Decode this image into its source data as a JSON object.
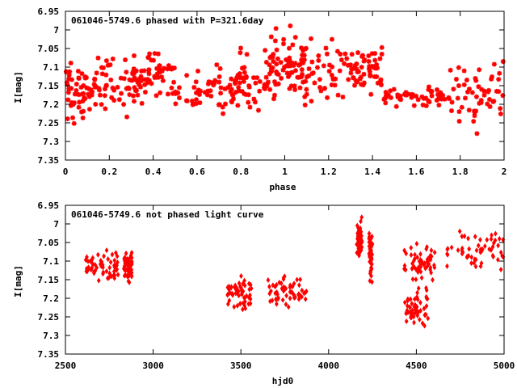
{
  "chart_data": [
    {
      "type": "scatter",
      "title": "061046-5749.6 phased with P=321.6day",
      "xlabel": "phase",
      "ylabel": "I[mag]",
      "xlim": [
        0,
        2
      ],
      "ylim": [
        6.95,
        7.35
      ],
      "y_inverted": true,
      "x_ticks": [
        "0",
        "0.2",
        "0.4",
        "0.6",
        "0.8",
        "1",
        "1.2",
        "1.4",
        "1.6",
        "1.8",
        "2"
      ],
      "y_ticks": [
        "6.95",
        "7",
        "7.05",
        "7.1",
        "7.15",
        "7.2",
        "7.25",
        "7.3",
        "7.35"
      ],
      "grid": false,
      "marker_color": "#ff0000",
      "series": [
        {
          "clusters": [
            {
              "x": [
                0.0,
                0.14
              ],
              "y": [
                7.04,
                7.28
              ]
            },
            {
              "x": [
                0.13,
                0.35
              ],
              "y": [
                7.02,
                7.28
              ]
            },
            {
              "x": [
                0.3,
                0.5
              ],
              "y": [
                7.05,
                7.2
              ]
            },
            {
              "x": [
                0.5,
                0.8
              ],
              "y": [
                7.08,
                7.25
              ]
            },
            {
              "x": [
                0.75,
                0.97
              ],
              "y": [
                7.02,
                7.28
              ]
            },
            {
              "x": [
                0.93,
                1.1
              ],
              "y": [
                6.97,
                7.2
              ]
            },
            {
              "x": [
                1.02,
                1.28
              ],
              "y": [
                7.0,
                7.25
              ]
            },
            {
              "x": [
                1.28,
                1.45
              ],
              "y": [
                7.02,
                7.2
              ]
            },
            {
              "x": [
                1.45,
                1.75
              ],
              "y": [
                7.14,
                7.22
              ]
            },
            {
              "x": [
                1.75,
                2.0
              ],
              "y": [
                7.05,
                7.3
              ]
            }
          ]
        }
      ]
    },
    {
      "type": "scatter",
      "title": "061046-5749.6 not phased light curve",
      "xlabel": "hjd0",
      "ylabel": "I[mag]",
      "xlim": [
        2500,
        5000
      ],
      "ylim": [
        6.95,
        7.35
      ],
      "y_inverted": true,
      "x_ticks": [
        "2500",
        "3000",
        "3500",
        "4000",
        "4500",
        "5000"
      ],
      "y_ticks": [
        "6.95",
        "7",
        "7.05",
        "7.1",
        "7.15",
        "7.2",
        "7.25",
        "7.3",
        "7.35"
      ],
      "grid": false,
      "marker_color": "#ff0000",
      "series": [
        {
          "clusters": [
            {
              "x": [
                2610,
                2800
              ],
              "y": [
                7.06,
                7.17
              ]
            },
            {
              "x": [
                2830,
                2880
              ],
              "y": [
                7.07,
                7.17
              ]
            },
            {
              "x": [
                3420,
                3560
              ],
              "y": [
                7.13,
                7.25
              ]
            },
            {
              "x": [
                3650,
                3880
              ],
              "y": [
                7.11,
                7.24
              ]
            },
            {
              "x": [
                4160,
                4190
              ],
              "y": [
                6.98,
                7.1
              ]
            },
            {
              "x": [
                4230,
                4250
              ],
              "y": [
                6.99,
                7.18
              ]
            },
            {
              "x": [
                4430,
                4610
              ],
              "y": [
                7.04,
                7.16
              ]
            },
            {
              "x": [
                4430,
                4570
              ],
              "y": [
                7.16,
                7.3
              ]
            },
            {
              "x": [
                4650,
                5000
              ],
              "y": [
                6.98,
                7.15
              ]
            }
          ]
        }
      ]
    }
  ]
}
